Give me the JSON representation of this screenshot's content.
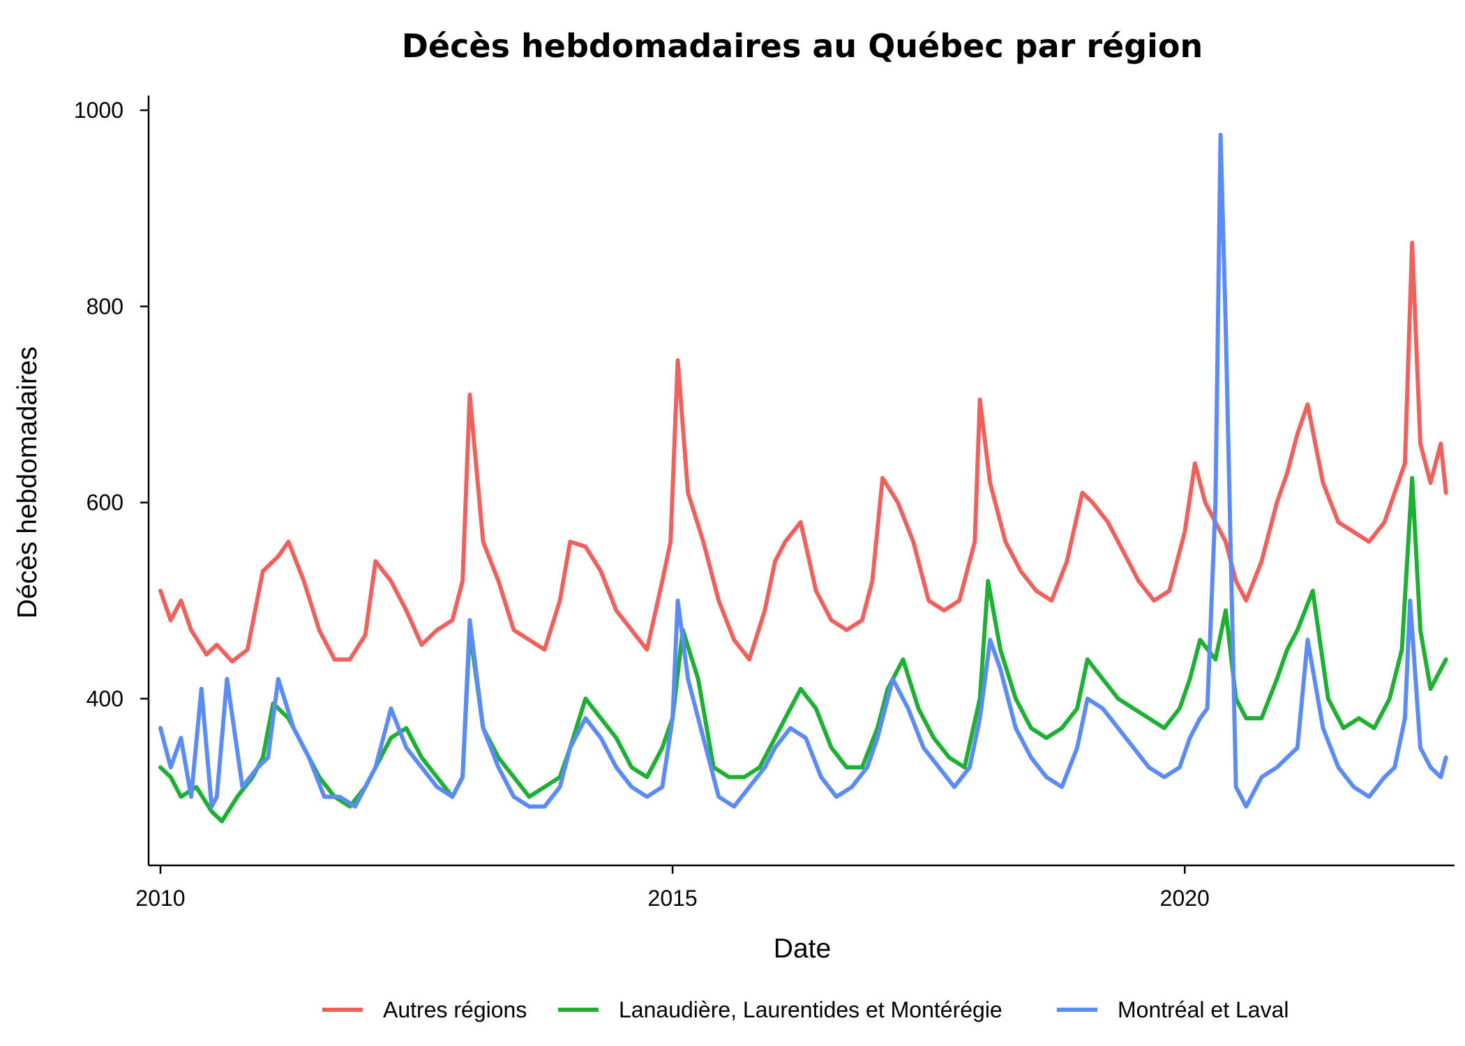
{
  "chart_data": {
    "type": "line",
    "title": "Décès hebdomadaires au Québec par région",
    "xlabel": "Date",
    "ylabel": "Décès hebdomadaires",
    "xlim": [
      2010,
      2022.6
    ],
    "ylim": [
      230,
      1015
    ],
    "x_ticks": [
      2010,
      2015,
      2020
    ],
    "x_tick_labels": [
      "2010",
      "2015",
      "2020"
    ],
    "y_ticks": [
      400,
      600,
      800,
      1000
    ],
    "y_tick_labels": [
      "400",
      "600",
      "800",
      "1000"
    ],
    "grid": false,
    "legend_position": "bottom",
    "x_unit": "year",
    "series": [
      {
        "name": "Autres régions",
        "color": "#F0605D",
        "x": [
          2010.0,
          2010.1,
          2010.2,
          2010.3,
          2010.45,
          2010.55,
          2010.7,
          2010.85,
          2011.0,
          2011.15,
          2011.25,
          2011.4,
          2011.55,
          2011.7,
          2011.85,
          2012.0,
          2012.1,
          2012.25,
          2012.4,
          2012.55,
          2012.7,
          2012.85,
          2012.95,
          2013.02,
          2013.15,
          2013.3,
          2013.45,
          2013.6,
          2013.75,
          2013.9,
          2014.0,
          2014.15,
          2014.3,
          2014.45,
          2014.6,
          2014.75,
          2014.9,
          2014.98,
          2015.05,
          2015.15,
          2015.3,
          2015.45,
          2015.6,
          2015.75,
          2015.9,
          2016.0,
          2016.1,
          2016.25,
          2016.4,
          2016.55,
          2016.7,
          2016.85,
          2016.95,
          2017.05,
          2017.2,
          2017.35,
          2017.5,
          2017.65,
          2017.8,
          2017.95,
          2018.0,
          2018.1,
          2018.25,
          2018.4,
          2018.55,
          2018.7,
          2018.85,
          2019.0,
          2019.1,
          2019.25,
          2019.4,
          2019.55,
          2019.7,
          2019.85,
          2020.0,
          2020.1,
          2020.2,
          2020.3,
          2020.4,
          2020.5,
          2020.6,
          2020.75,
          2020.9,
          2021.0,
          2021.1,
          2021.2,
          2021.35,
          2021.5,
          2021.65,
          2021.8,
          2021.95,
          2022.05,
          2022.15,
          2022.22,
          2022.3,
          2022.4,
          2022.5,
          2022.55
        ],
        "y": [
          510,
          480,
          500,
          470,
          445,
          455,
          438,
          450,
          530,
          545,
          560,
          520,
          470,
          440,
          440,
          465,
          540,
          520,
          490,
          455,
          470,
          480,
          520,
          710,
          560,
          520,
          470,
          460,
          450,
          500,
          560,
          555,
          530,
          490,
          470,
          450,
          520,
          560,
          745,
          610,
          560,
          500,
          460,
          440,
          490,
          540,
          560,
          580,
          510,
          480,
          470,
          480,
          520,
          625,
          600,
          560,
          500,
          490,
          500,
          560,
          705,
          620,
          560,
          530,
          510,
          500,
          540,
          610,
          600,
          580,
          550,
          520,
          500,
          510,
          570,
          640,
          600,
          580,
          560,
          520,
          500,
          540,
          600,
          630,
          670,
          700,
          620,
          580,
          570,
          560,
          580,
          610,
          640,
          865,
          660,
          620,
          660,
          610
        ]
      },
      {
        "name": "Lanaudière, Laurentides et Montérégie",
        "color": "#1EB034",
        "x": [
          2010.0,
          2010.1,
          2010.2,
          2010.35,
          2010.5,
          2010.6,
          2010.75,
          2010.9,
          2011.0,
          2011.1,
          2011.25,
          2011.4,
          2011.55,
          2011.7,
          2011.85,
          2012.0,
          2012.1,
          2012.25,
          2012.4,
          2012.55,
          2012.7,
          2012.85,
          2012.95,
          2013.02,
          2013.15,
          2013.3,
          2013.45,
          2013.6,
          2013.75,
          2013.9,
          2014.0,
          2014.15,
          2014.3,
          2014.45,
          2014.6,
          2014.75,
          2014.9,
          2015.0,
          2015.1,
          2015.25,
          2015.4,
          2015.55,
          2015.7,
          2015.85,
          2016.0,
          2016.1,
          2016.25,
          2016.4,
          2016.55,
          2016.7,
          2016.85,
          2017.0,
          2017.1,
          2017.25,
          2017.4,
          2017.55,
          2017.7,
          2017.85,
          2018.0,
          2018.08,
          2018.2,
          2018.35,
          2018.5,
          2018.65,
          2018.8,
          2018.95,
          2019.05,
          2019.2,
          2019.35,
          2019.5,
          2019.65,
          2019.8,
          2019.95,
          2020.05,
          2020.15,
          2020.3,
          2020.4,
          2020.5,
          2020.6,
          2020.75,
          2020.9,
          2021.0,
          2021.1,
          2021.25,
          2021.4,
          2021.55,
          2021.7,
          2021.85,
          2022.0,
          2022.12,
          2022.22,
          2022.3,
          2022.4,
          2022.5,
          2022.55
        ],
        "y": [
          330,
          320,
          300,
          310,
          285,
          275,
          300,
          320,
          340,
          395,
          380,
          350,
          320,
          300,
          290,
          310,
          330,
          360,
          370,
          340,
          320,
          300,
          320,
          470,
          370,
          340,
          320,
          300,
          310,
          320,
          350,
          400,
          380,
          360,
          330,
          320,
          350,
          380,
          470,
          420,
          330,
          320,
          320,
          330,
          360,
          380,
          410,
          390,
          350,
          330,
          330,
          370,
          410,
          440,
          390,
          360,
          340,
          330,
          400,
          520,
          450,
          400,
          370,
          360,
          370,
          390,
          440,
          420,
          400,
          390,
          380,
          370,
          390,
          420,
          460,
          440,
          490,
          400,
          380,
          380,
          420,
          450,
          470,
          510,
          400,
          370,
          380,
          370,
          400,
          450,
          625,
          470,
          410,
          430,
          440
        ]
      },
      {
        "name": "Montréal et Laval",
        "color": "#5B8BF7",
        "x": [
          2010.0,
          2010.1,
          2010.2,
          2010.3,
          2010.4,
          2010.5,
          2010.55,
          2010.65,
          2010.8,
          2010.95,
          2011.05,
          2011.15,
          2011.3,
          2011.45,
          2011.6,
          2011.75,
          2011.9,
          2012.0,
          2012.1,
          2012.25,
          2012.4,
          2012.55,
          2012.7,
          2012.85,
          2012.95,
          2013.02,
          2013.15,
          2013.3,
          2013.45,
          2013.6,
          2013.75,
          2013.9,
          2014.0,
          2014.15,
          2014.3,
          2014.45,
          2014.6,
          2014.75,
          2014.9,
          2015.0,
          2015.05,
          2015.15,
          2015.3,
          2015.45,
          2015.6,
          2015.75,
          2015.9,
          2016.0,
          2016.15,
          2016.3,
          2016.45,
          2016.6,
          2016.75,
          2016.9,
          2017.0,
          2017.15,
          2017.3,
          2017.45,
          2017.6,
          2017.75,
          2017.9,
          2018.0,
          2018.1,
          2018.2,
          2018.35,
          2018.5,
          2018.65,
          2018.8,
          2018.95,
          2019.05,
          2019.2,
          2019.35,
          2019.5,
          2019.65,
          2019.8,
          2019.95,
          2020.05,
          2020.15,
          2020.22,
          2020.3,
          2020.35,
          2020.4,
          2020.5,
          2020.6,
          2020.75,
          2020.9,
          2021.0,
          2021.1,
          2021.2,
          2021.35,
          2021.5,
          2021.65,
          2021.8,
          2021.95,
          2022.05,
          2022.15,
          2022.2,
          2022.3,
          2022.4,
          2022.5,
          2022.55
        ],
        "y": [
          370,
          330,
          360,
          300,
          410,
          290,
          300,
          420,
          310,
          330,
          340,
          420,
          370,
          340,
          300,
          300,
          290,
          310,
          330,
          390,
          350,
          330,
          310,
          300,
          320,
          480,
          370,
          330,
          300,
          290,
          290,
          310,
          350,
          380,
          360,
          330,
          310,
          300,
          310,
          380,
          500,
          420,
          360,
          300,
          290,
          310,
          330,
          350,
          370,
          360,
          320,
          300,
          310,
          330,
          360,
          420,
          390,
          350,
          330,
          310,
          330,
          380,
          460,
          430,
          370,
          340,
          320,
          310,
          350,
          400,
          390,
          370,
          350,
          330,
          320,
          330,
          360,
          380,
          390,
          600,
          975,
          780,
          310,
          290,
          320,
          330,
          340,
          350,
          460,
          370,
          330,
          310,
          300,
          320,
          330,
          380,
          500,
          350,
          330,
          320,
          340
        ]
      }
    ]
  }
}
